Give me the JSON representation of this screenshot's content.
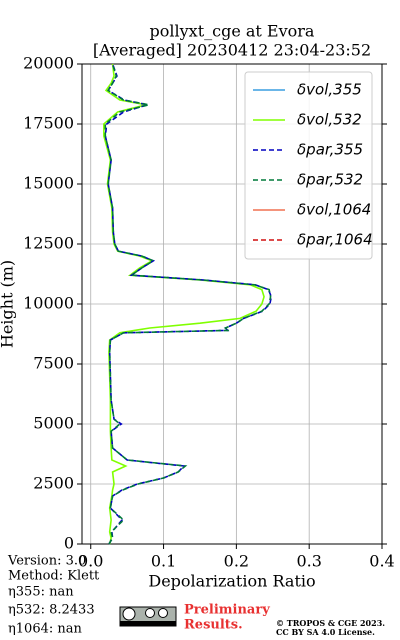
{
  "chart_data": {
    "type": "line",
    "title": "pollyxt_cge at Evora",
    "subtitle": "[Averaged] 20230412 23:04-23:52",
    "x_label": "Depolarization Ratio",
    "y_label": "Height (m)",
    "xlim": [
      -0.012,
      0.4
    ],
    "xticks": [
      {
        "value": 0,
        "label": "0.0"
      },
      0.1,
      0.2,
      0.3,
      0.4
    ],
    "ylim": [
      0,
      20000
    ],
    "yticks": [
      0,
      2500,
      5000,
      7500,
      10000,
      12500,
      15000,
      17500,
      20000
    ],
    "grid": true,
    "legend": "upper right",
    "y": [
      0,
      250,
      500,
      1000,
      1500,
      2000,
      2250,
      2500,
      2750,
      3000,
      3250,
      3500,
      4000,
      4700,
      5000,
      5200,
      6000,
      7000,
      8000,
      8500,
      8800,
      8900,
      9000,
      9200,
      9400,
      9700,
      10000,
      10300,
      10600,
      10800,
      11000,
      11200,
      11500,
      11800,
      12000,
      12200,
      12500,
      13000,
      14000,
      15000,
      16000,
      17000,
      17500,
      18000,
      18300,
      18500,
      18900,
      19200,
      19500,
      20000
    ],
    "series": [
      {
        "name": "δvol,355",
        "color": "#3a9ee0",
        "dash": "solid"
      },
      {
        "name": "δvol,532",
        "color": "#80ff00",
        "dash": "solid",
        "values": [
          0.026,
          0.028,
          0.026,
          0.028,
          0.026,
          0.029,
          0.03,
          0.032,
          0.031,
          0.03,
          0.048,
          0.029,
          0.028,
          0.027,
          0.027,
          0.027,
          0.027,
          0.026,
          0.025,
          0.026,
          0.04,
          0.06,
          0.081,
          0.15,
          0.205,
          0.227,
          0.235,
          0.238,
          0.235,
          0.219,
          0.15,
          0.054,
          0.067,
          0.084,
          0.067,
          0.037,
          0.032,
          0.03,
          0.029,
          0.023,
          0.027,
          0.018,
          0.018,
          0.037,
          0.076,
          0.04,
          0.021,
          0.028,
          0.032,
          0.03
        ]
      },
      {
        "name": "δpar,355",
        "color": "#0000c0",
        "dash": "dashed",
        "values": [
          0.025,
          0.03,
          0.029,
          0.043,
          0.027,
          0.03,
          0.043,
          0.064,
          0.1,
          0.12,
          0.128,
          0.05,
          0.03,
          0.028,
          0.042,
          0.032,
          0.028,
          0.027,
          0.026,
          0.027,
          0.045,
          0.188,
          0.185,
          0.2,
          0.21,
          0.236,
          0.246,
          0.248,
          0.244,
          0.226,
          0.155,
          0.056,
          0.07,
          0.086,
          0.07,
          0.038,
          0.033,
          0.031,
          0.03,
          0.024,
          0.028,
          0.02,
          0.022,
          0.045,
          0.078,
          0.046,
          0.024,
          0.03,
          0.036,
          0.03
        ]
      },
      {
        "name": "δpar,532",
        "color": "#007a3a",
        "dash": "dashed",
        "values": [
          0.025,
          0.03,
          0.028,
          0.045,
          0.027,
          0.03,
          0.044,
          0.065,
          0.1,
          0.12,
          0.13,
          0.05,
          0.03,
          0.028,
          0.04,
          0.032,
          0.028,
          0.027,
          0.026,
          0.027,
          0.045,
          0.19,
          0.185,
          0.2,
          0.21,
          0.235,
          0.245,
          0.247,
          0.245,
          0.225,
          0.155,
          0.056,
          0.07,
          0.086,
          0.07,
          0.038,
          0.033,
          0.031,
          0.03,
          0.024,
          0.028,
          0.02,
          0.02,
          0.04,
          0.08,
          0.045,
          0.024,
          0.03,
          0.035,
          0.03
        ]
      },
      {
        "name": "δvol,1064",
        "color": "#f07050",
        "dash": "solid"
      },
      {
        "name": "δpar,1064",
        "color": "#d01010",
        "dash": "dashed"
      }
    ],
    "footer": {
      "version": "Version: 3.0",
      "method": "Method: Klett",
      "eta355": "η355:    nan",
      "eta532": "η532: 8.2433",
      "eta1064": "η1064:    nan",
      "preliminary": "Preliminary",
      "results": "Results.",
      "copyright": "© TROPOS & CGE 2023.",
      "license": "CC BY SA 4.0 License."
    }
  }
}
